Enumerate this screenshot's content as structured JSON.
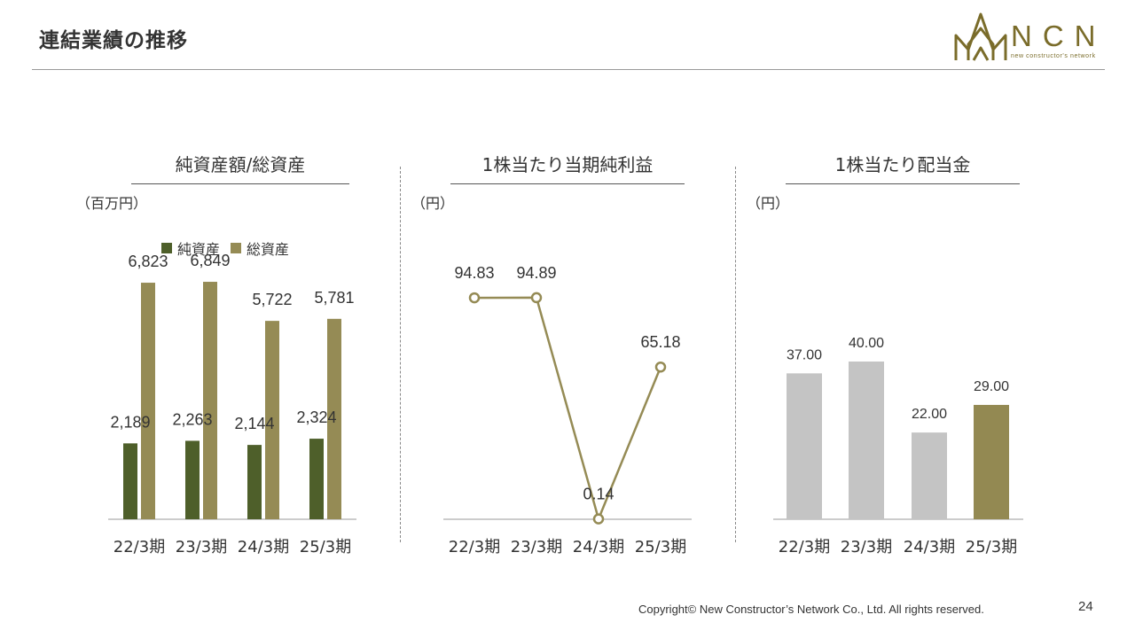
{
  "header": {
    "title": "連結業績の推移"
  },
  "logo": {
    "text": "NCN",
    "tagline": "new constructor's network"
  },
  "colors": {
    "net_assets": "#4e5f2a",
    "total_assets": "#958b55",
    "eps_line": "#958b55",
    "dividend_gray": "#c4c4c4",
    "dividend_highlight": "#938952",
    "axis": "#999999"
  },
  "panels": {
    "assets": {
      "title": "純資産額/総資産",
      "unit": "（百万円）"
    },
    "eps": {
      "title": "1株当たり当期純利益",
      "unit": "（円）"
    },
    "dividend": {
      "title": "1株当たり配当金",
      "unit": "（円）"
    }
  },
  "chart_data": [
    {
      "type": "bar",
      "title": "純資産額/総資産",
      "ylabel": "（百万円）",
      "categories": [
        "22/3期",
        "23/3期",
        "24/3期",
        "25/3期"
      ],
      "series": [
        {
          "name": "純資産",
          "values": [
            2189,
            2263,
            2144,
            2324
          ],
          "labels": [
            "2,189",
            "2,263",
            "2,144",
            "2,324"
          ]
        },
        {
          "name": "総資産",
          "values": [
            6823,
            6849,
            5722,
            5781
          ],
          "labels": [
            "6,823",
            "6,849",
            "5,722",
            "5,781"
          ]
        }
      ],
      "ylim": [
        0,
        8000
      ],
      "legend": "top",
      "grid": false
    },
    {
      "type": "line",
      "title": "1株当たり当期純利益",
      "ylabel": "（円）",
      "categories": [
        "22/3期",
        "23/3期",
        "24/3期",
        "25/3期"
      ],
      "values": [
        94.83,
        94.89,
        0.14,
        65.18
      ],
      "labels": [
        "94.83",
        "94.89",
        "0.14",
        "65.18"
      ],
      "ylim": [
        0,
        115
      ],
      "grid": false
    },
    {
      "type": "bar",
      "title": "1株当たり配当金",
      "ylabel": "（円）",
      "categories": [
        "22/3期",
        "23/3期",
        "24/3期",
        "25/3期"
      ],
      "values": [
        37.0,
        40.0,
        22.0,
        29.0
      ],
      "labels": [
        "37.00",
        "40.00",
        "22.00",
        "29.00"
      ],
      "highlight_index": 3,
      "ylim": [
        0,
        80
      ],
      "grid": false
    }
  ],
  "footer": {
    "copyright": "Copyright© New Constructor’s Network Co., Ltd. All rights reserved.",
    "page_number": "24"
  }
}
